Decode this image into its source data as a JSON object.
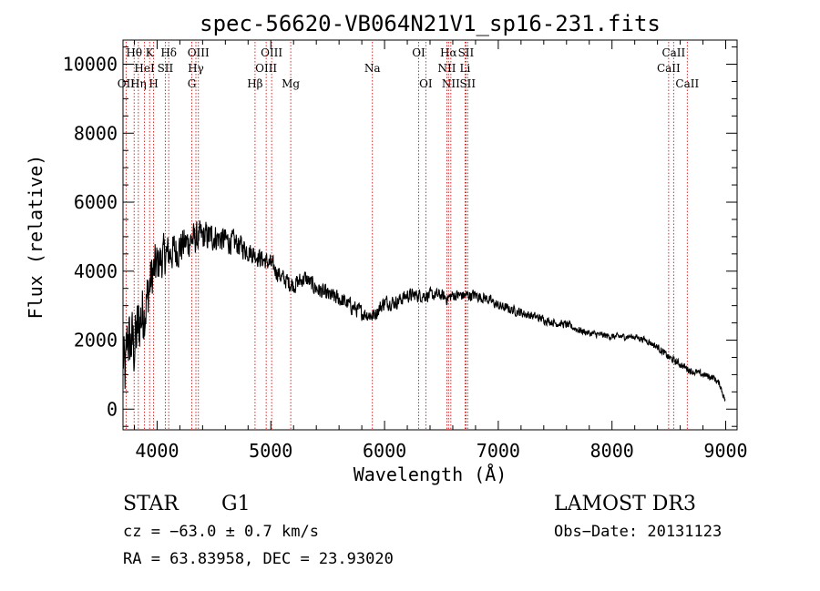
{
  "chart_data": {
    "type": "line",
    "title": "spec-56620-VB064N21V1_sp16-231.fits",
    "xlabel": "Wavelength (Å)",
    "ylabel": "Flux (relative)",
    "xlim": [
      3700,
      9100
    ],
    "ylim": [
      -600,
      10700
    ],
    "xticks": [
      4000,
      5000,
      6000,
      7000,
      8000,
      9000
    ],
    "yticks": [
      0,
      2000,
      4000,
      6000,
      8000,
      10000
    ],
    "spectrum_anchors": {
      "x": [
        3700,
        3720,
        3740,
        3760,
        3780,
        3800,
        3850,
        3900,
        3950,
        4000,
        4050,
        4100,
        4200,
        4300,
        4400,
        4500,
        4600,
        4700,
        4800,
        4900,
        5000,
        5100,
        5200,
        5300,
        5400,
        5500,
        5600,
        5700,
        5800,
        5900,
        6000,
        6100,
        6200,
        6300,
        6400,
        6500,
        6550,
        6600,
        6700,
        6800,
        6900,
        7000,
        7100,
        7200,
        7300,
        7400,
        7500,
        7600,
        7700,
        7800,
        7900,
        8000,
        8100,
        8200,
        8300,
        8400,
        8500,
        8600,
        8700,
        8800,
        8900,
        8950,
        9000
      ],
      "y": [
        1500,
        900,
        2200,
        1800,
        2000,
        1800,
        2600,
        3000,
        3800,
        4200,
        4400,
        4500,
        4700,
        4900,
        5000,
        5000,
        4900,
        4800,
        4600,
        4400,
        4200,
        3800,
        3600,
        3800,
        3500,
        3300,
        3200,
        3000,
        2800,
        2700,
        3100,
        3100,
        3300,
        3300,
        3300,
        3300,
        3200,
        3300,
        3300,
        3300,
        3200,
        3000,
        2900,
        2800,
        2700,
        2600,
        2500,
        2450,
        2300,
        2200,
        2150,
        2100,
        2100,
        2100,
        2000,
        1800,
        1500,
        1300,
        1100,
        1000,
        900,
        700,
        200
      ],
      "noise": [
        1400,
        1400,
        1400,
        1400,
        1400,
        1500,
        1500,
        1300,
        1100,
        1000,
        900,
        850,
        800,
        700,
        650,
        600,
        550,
        500,
        450,
        400,
        400,
        380,
        380,
        360,
        360,
        360,
        350,
        340,
        330,
        320,
        320,
        300,
        300,
        280,
        280,
        260,
        260,
        250,
        250,
        240,
        230,
        220,
        200,
        200,
        190,
        180,
        170,
        170,
        160,
        150,
        150,
        140,
        140,
        140,
        140,
        150,
        160,
        160,
        150,
        150,
        140,
        140,
        120
      ]
    },
    "lines": [
      {
        "name": "OII",
        "wave": 3727,
        "row": 3
      },
      {
        "name": "Hθ",
        "wave": 3798,
        "row": 1
      },
      {
        "name": "Hη",
        "wave": 3835,
        "row": 3
      },
      {
        "name": "HeI",
        "wave": 3889,
        "row": 2
      },
      {
        "name": "K",
        "wave": 3934,
        "row": 1
      },
      {
        "name": "H",
        "wave": 3969,
        "row": 3
      },
      {
        "name": "SII",
        "wave": 4072,
        "row": 2
      },
      {
        "name": "Hδ",
        "wave": 4102,
        "row": 1
      },
      {
        "name": "G",
        "wave": 4305,
        "row": 3
      },
      {
        "name": "Hγ",
        "wave": 4341,
        "row": 2
      },
      {
        "name": "OIII",
        "wave": 4363,
        "row": 1
      },
      {
        "name": "Hβ",
        "wave": 4861,
        "row": 3
      },
      {
        "name": "OIII",
        "wave": 4959,
        "row": 2
      },
      {
        "name": "OIII",
        "wave": 5007,
        "row": 1
      },
      {
        "name": "Mg",
        "wave": 5175,
        "row": 3
      },
      {
        "name": "Na",
        "wave": 5893,
        "row": 2
      },
      {
        "name": "OI",
        "wave": 6300,
        "row": 1
      },
      {
        "name": "OI",
        "wave": 6363,
        "row": 3
      },
      {
        "name": "NII",
        "wave": 6548,
        "row": 2
      },
      {
        "name": "Hα",
        "wave": 6563,
        "row": 1
      },
      {
        "name": "NII",
        "wave": 6583,
        "row": 3
      },
      {
        "name": "Li",
        "wave": 6708,
        "row": 2
      },
      {
        "name": "SII",
        "wave": 6716,
        "row": 1
      },
      {
        "name": "SII",
        "wave": 6731,
        "row": 3
      },
      {
        "name": "CaII",
        "wave": 8498,
        "row": 2
      },
      {
        "name": "CaII",
        "wave": 8542,
        "row": 1
      },
      {
        "name": "CaII",
        "wave": 8662,
        "row": 3
      }
    ]
  },
  "info": {
    "object_class": "STAR",
    "subclass": "G1",
    "survey": "LAMOST DR3",
    "cz": "cz = −63.0 ± 0.7 km/s",
    "obs_date": "Obs−Date: 20131123",
    "coords": "RA =  63.83958, DEC =  23.93020"
  }
}
